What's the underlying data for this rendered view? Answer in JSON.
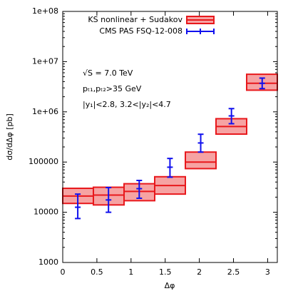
{
  "chart_data": {
    "type": "errorbar",
    "xlabel": "Δφ",
    "ylabel": "dσ/dΔφ [pb]",
    "xlim": [
      0,
      3.1416
    ],
    "xticks": [
      0,
      0.5,
      1,
      1.5,
      2,
      2.5,
      3
    ],
    "ylim": [
      1000,
      100000000
    ],
    "log_y": true,
    "yticks": [
      {
        "value": 1000,
        "label": "1000"
      },
      {
        "value": 10000,
        "label": "10000"
      },
      {
        "value": 100000,
        "label": "100000"
      },
      {
        "value": 1000000,
        "label": "1e+06"
      },
      {
        "value": 10000000,
        "label": "1e+07"
      },
      {
        "value": 100000000,
        "label": "1e+08"
      }
    ],
    "legend": "top-right",
    "annotations": [
      "√S = 7.0 TeV",
      "pₜ₁,pₜ₂>35 GeV",
      "|y₁|<2.8, 3.2<|y₂|<4.7"
    ],
    "series": [
      {
        "name": "KS nonlinear + Sudakov",
        "type": "band",
        "color": "#e8181c",
        "fill": "#f6a3a3",
        "bins": [
          0,
          0.4488,
          0.8976,
          1.3464,
          1.7952,
          2.244,
          2.6928,
          3.1416
        ],
        "values": [
          21000,
          22000,
          26000,
          34000,
          100000,
          510000,
          3700000
        ],
        "lower": [
          15000,
          14000,
          17000,
          23000,
          74000,
          360000,
          2700000
        ],
        "upper": [
          30000,
          31500,
          37000,
          51000,
          158000,
          730000,
          5600000
        ]
      },
      {
        "name": "CMS PAS FSQ-12-008",
        "type": "errorbar",
        "color": "#1010ee",
        "x": [
          0.22,
          0.67,
          1.12,
          1.57,
          2.02,
          2.47,
          2.92
        ],
        "values": [
          12600,
          17600,
          29500,
          79000,
          240000,
          830000,
          3700000
        ],
        "lower": [
          7500,
          10000,
          19000,
          50000,
          158000,
          580000,
          2900000
        ],
        "upper": [
          23000,
          31000,
          43000,
          118000,
          358000,
          1160000,
          4700000
        ]
      }
    ]
  }
}
